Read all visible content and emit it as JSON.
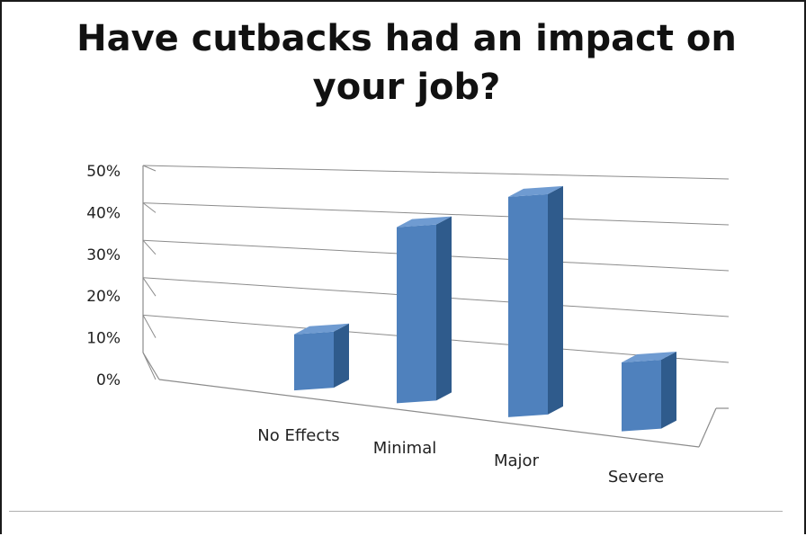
{
  "chart_data": {
    "type": "bar",
    "title": "Have cutbacks had an impact on your job?",
    "categories": [
      "No Effects",
      "Minimal",
      "Major",
      "Severe"
    ],
    "values": [
      13,
      40,
      49,
      15
    ],
    "yticks": [
      "0%",
      "10%",
      "20%",
      "30%",
      "40%",
      "50%"
    ],
    "ylim": [
      0,
      50
    ],
    "unit": "%",
    "grid": true,
    "legend": "none",
    "style": "3d-column",
    "colors": {
      "front": "#4f81bd",
      "side": "#2f5b8c",
      "top": "#6f9bd1",
      "grid": "#8c8c8c"
    }
  }
}
